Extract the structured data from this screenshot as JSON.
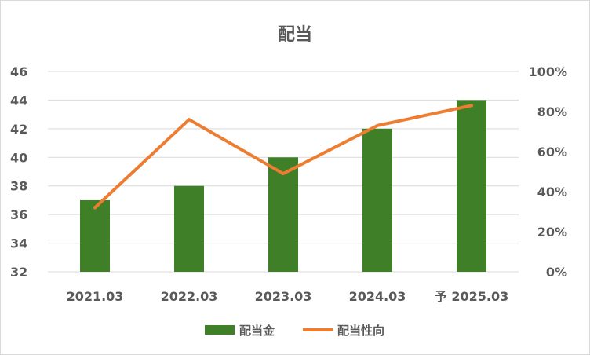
{
  "chart_data": {
    "type": "bar",
    "title": "配当",
    "categories": [
      "2021.03",
      "2022.03",
      "2023.03",
      "2024.03",
      "予 2025.03"
    ],
    "series": [
      {
        "name": "配当金",
        "type": "bar",
        "axis": "left",
        "color": "#3f7f27",
        "values": [
          37,
          38,
          40,
          42,
          44
        ]
      },
      {
        "name": "配当性向",
        "type": "line",
        "axis": "right",
        "color": "#ed7d31",
        "values": [
          32,
          76,
          49,
          73,
          83
        ]
      }
    ],
    "ylim": [
      32,
      46
    ],
    "yticks": [
      "32",
      "34",
      "36",
      "38",
      "40",
      "42",
      "44",
      "46"
    ],
    "y2lim": [
      0,
      100
    ],
    "y2ticks": [
      "0%",
      "20%",
      "40%",
      "60%",
      "80%",
      "100%"
    ],
    "grid": true,
    "legend_position": "bottom"
  }
}
